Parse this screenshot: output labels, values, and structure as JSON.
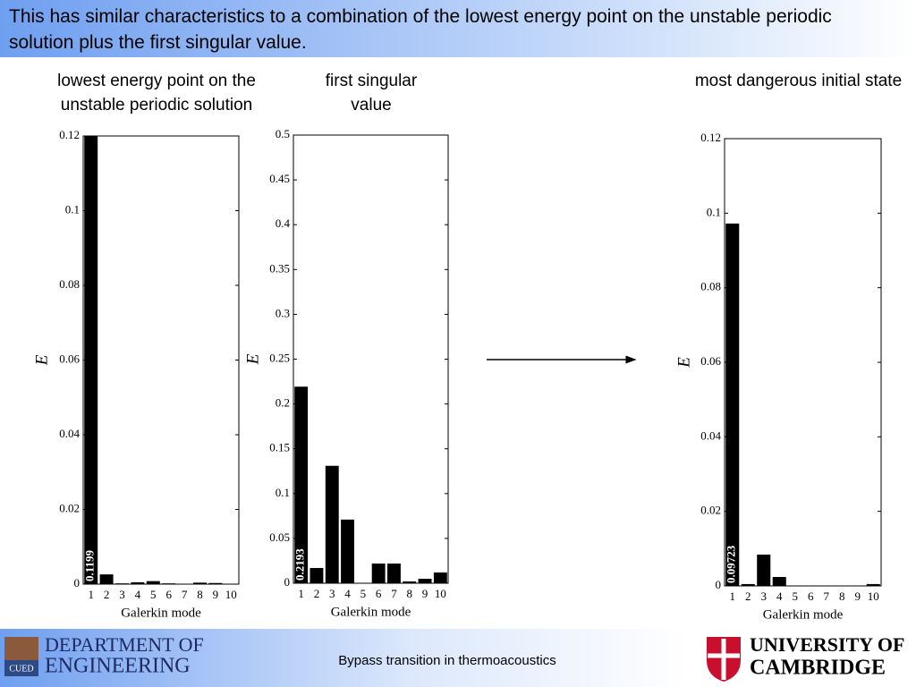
{
  "header": {
    "title": "This has similar characteristics to a combination of the lowest energy point on the unstable periodic solution plus the first singular value."
  },
  "footer": {
    "department_line1": "DEPARTMENT OF",
    "department_line2": "ENGINEERING",
    "logo_text": "CUED",
    "caption": "Bypass transition in thermoacoustics",
    "university_line1": "UNIVERSITY OF",
    "university_line2": "CAMBRIDGE"
  },
  "chart_data": [
    {
      "type": "bar",
      "title": "lowest energy point on the unstable periodic solution",
      "xlabel": "Galerkin mode",
      "ylabel": "E",
      "color": "#000000",
      "categories": [
        "1",
        "2",
        "3",
        "4",
        "5",
        "6",
        "7",
        "8",
        "9",
        "10"
      ],
      "values": [
        0.1199,
        0.0026,
        0.0002,
        0.0005,
        0.0008,
        0.0002,
        0.0001,
        0.0004,
        0.0003,
        0.0001
      ],
      "value_labels": [
        "0.1199",
        null,
        null,
        null,
        null,
        null,
        null,
        null,
        null,
        null
      ],
      "ylim": [
        0,
        0.12
      ],
      "yticks": [
        0,
        0.02,
        0.04,
        0.06,
        0.08,
        0.1,
        0.12
      ]
    },
    {
      "type": "bar",
      "title": "first singular value",
      "xlabel": "Galerkin mode",
      "ylabel": "E",
      "color": "#000000",
      "categories": [
        "1",
        "2",
        "3",
        "4",
        "5",
        "6",
        "7",
        "8",
        "9",
        "10"
      ],
      "values": [
        0.2193,
        0.017,
        0.131,
        0.071,
        0.0005,
        0.022,
        0.022,
        0.002,
        0.005,
        0.012
      ],
      "value_labels": [
        "0.2193",
        null,
        null,
        null,
        null,
        null,
        null,
        null,
        null,
        null
      ],
      "ylim": [
        0,
        0.5
      ],
      "yticks": [
        0,
        0.05,
        0.1,
        0.15,
        0.2,
        0.25,
        0.3,
        0.35,
        0.4,
        0.45,
        0.5
      ]
    },
    {
      "type": "bar",
      "title": "most dangerous initial state",
      "xlabel": "Galerkin mode",
      "ylabel": "E",
      "color": "#000000",
      "categories": [
        "1",
        "2",
        "3",
        "4",
        "5",
        "6",
        "7",
        "8",
        "9",
        "10"
      ],
      "values": [
        0.09723,
        0.0005,
        0.0084,
        0.0024,
        0.0001,
        0.0001,
        0.0001,
        0.0001,
        0.0001,
        0.0005
      ],
      "value_labels": [
        "0.09723",
        null,
        null,
        null,
        null,
        null,
        null,
        null,
        null,
        null
      ],
      "ylim": [
        0,
        0.12
      ],
      "yticks": [
        0,
        0.02,
        0.04,
        0.06,
        0.08,
        0.1,
        0.12
      ]
    }
  ]
}
